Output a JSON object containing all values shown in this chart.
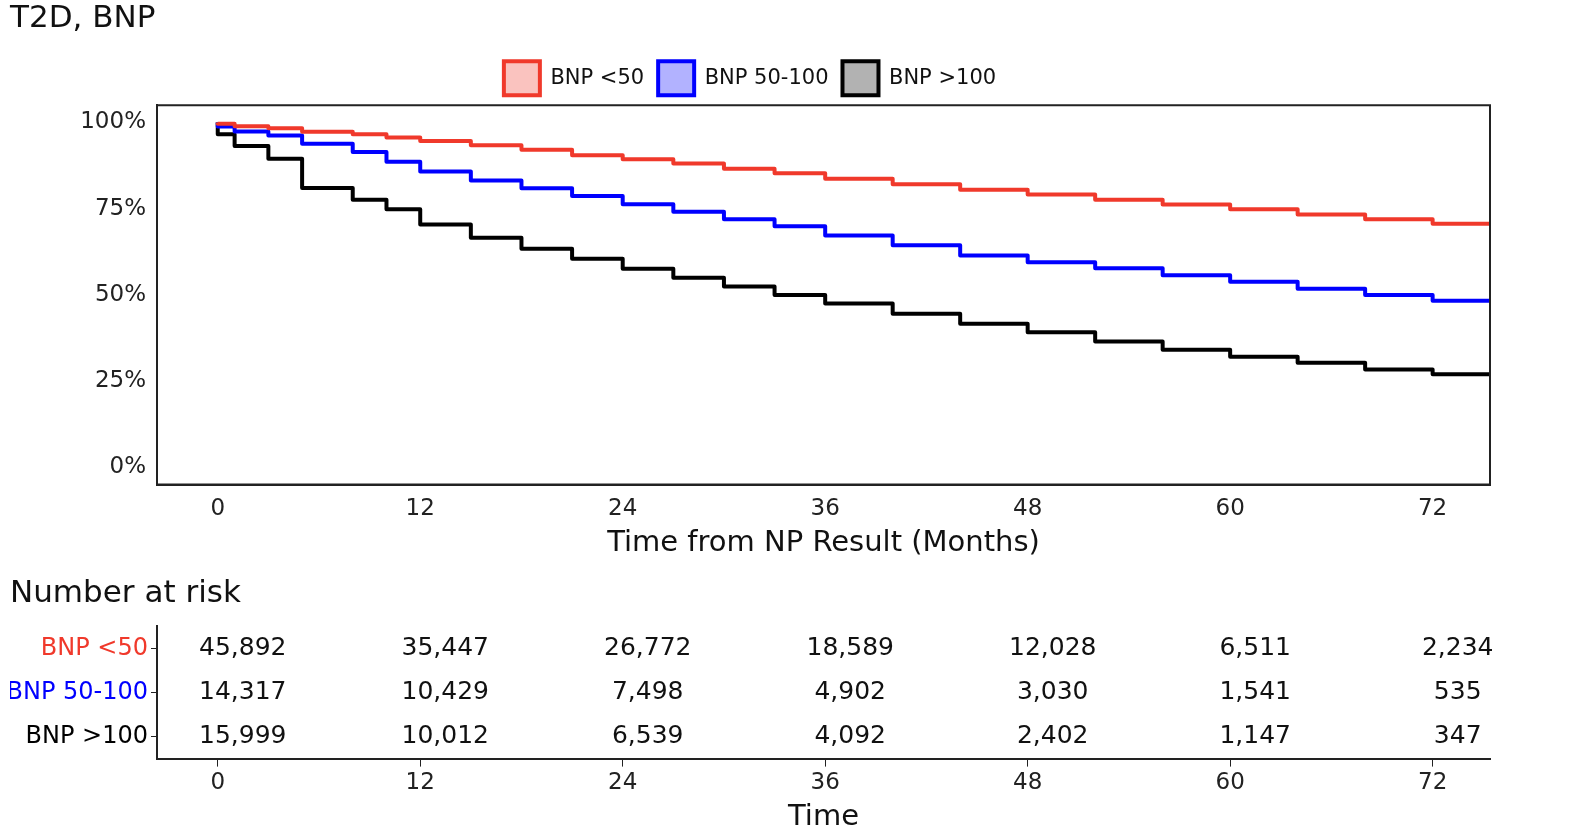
{
  "chart_data": [
    {
      "type": "step",
      "title": "T2D, BNP",
      "xlabel": "Time from NP Result (Months)",
      "xlim": [
        -3.6,
        75.4
      ],
      "xticks": [
        0,
        12,
        24,
        36,
        48,
        60,
        72
      ],
      "ylim": [
        -5,
        105
      ],
      "yticks": [
        {
          "value": 0,
          "label": "0%"
        },
        {
          "value": 25,
          "label": "25%"
        },
        {
          "value": 50,
          "label": "50%"
        },
        {
          "value": 75,
          "label": "75%"
        },
        {
          "value": 100,
          "label": "100%"
        }
      ],
      "legend": "top",
      "grid": false,
      "x": [
        0,
        1,
        3,
        5,
        8,
        10,
        12,
        15,
        18,
        21,
        24,
        27,
        30,
        33,
        36,
        40,
        44,
        48,
        52,
        56,
        60,
        64,
        68,
        72,
        75.4
      ],
      "series": [
        {
          "name": "BNP <50",
          "color": "#f0392b",
          "values": [
            100,
            99.6,
            98.9,
            98.3,
            97.3,
            96.6,
            95.6,
            94.6,
            93.4,
            92.1,
            90.5,
            89.3,
            88.1,
            86.6,
            85.3,
            83.7,
            82.1,
            80.5,
            79.1,
            77.6,
            76.2,
            74.8,
            73.3,
            71.9,
            70.6
          ]
        },
        {
          "name": "BNP 50-100",
          "color": "#0000ff",
          "values": [
            100,
            98.8,
            97.4,
            96.2,
            93.8,
            91.4,
            88.6,
            85.8,
            83.2,
            80.9,
            78.7,
            76.3,
            74.1,
            71.9,
            69.9,
            67.2,
            64.4,
            61.4,
            59.5,
            57.7,
            55.7,
            53.8,
            51.8,
            50.0,
            48.3
          ]
        },
        {
          "name": "BNP >100",
          "color": "#000000",
          "values": [
            100,
            96.6,
            93.2,
            89.5,
            81.0,
            77.6,
            74.8,
            70.4,
            66.6,
            63.4,
            60.5,
            57.6,
            55.0,
            52.4,
            50.0,
            47.5,
            44.5,
            41.6,
            39.2,
            36.5,
            34.1,
            32.1,
            30.3,
            28.4,
            27.0
          ]
        }
      ]
    },
    {
      "type": "heatmap",
      "title": "Number at risk",
      "xlabel": "Time",
      "data_labels": true,
      "categories": [
        "0",
        "12",
        "24",
        "36",
        "48",
        "60",
        "72"
      ],
      "y_categories": [
        "BNP <50",
        "BNP 50-100",
        "BNP >100"
      ],
      "colors": [
        "#f0392b",
        "#0000ff",
        "#000000"
      ],
      "cells": [
        [
          45892,
          35447,
          26772,
          18589,
          12028,
          6511,
          2234
        ],
        [
          14317,
          10429,
          7498,
          4902,
          3030,
          1541,
          535
        ],
        [
          15999,
          10012,
          6539,
          4092,
          2402,
          1147,
          347
        ]
      ],
      "cell_labels": [
        [
          "45,892",
          "35,447",
          "26,772",
          "18,589",
          "12,028",
          "6,511",
          "2,234"
        ],
        [
          "14,317",
          "10,429",
          "7,498",
          "4,902",
          "3,030",
          "1,541",
          "535"
        ],
        [
          "15,999",
          "10,012",
          "6,539",
          "4,092",
          "2,402",
          "1,147",
          "347"
        ]
      ]
    }
  ]
}
